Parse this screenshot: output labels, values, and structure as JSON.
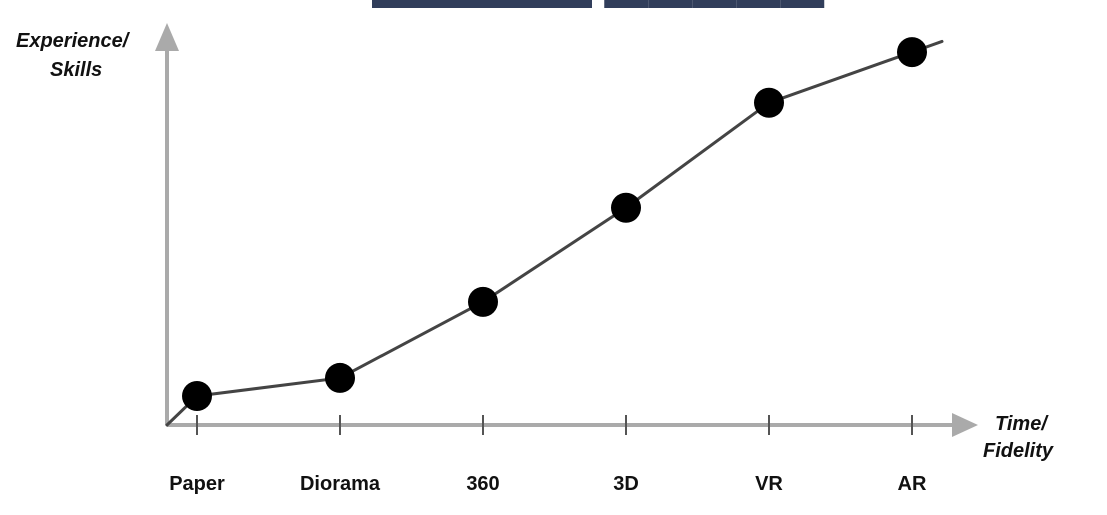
{
  "colors": {
    "axis": "#aaaaaa",
    "line": "#444444",
    "marker": "#000000",
    "text": "#111111",
    "title": "#1b2a4a"
  },
  "chart_data": {
    "type": "line",
    "title": "",
    "xlabel": "Time/ Fidelity",
    "xlabel_lines": [
      "Time/",
      "Fidelity"
    ],
    "ylabel": "Experience/ Skills",
    "ylabel_lines": [
      "Experience/",
      "Skills"
    ],
    "categories": [
      "Paper",
      "Diorama",
      "360",
      "3D",
      "VR",
      "AR"
    ],
    "series": [
      {
        "values": [
          8,
          13,
          34,
          60,
          89,
          103
        ]
      }
    ],
    "ylim": [
      0,
      108
    ],
    "grid": false,
    "legend": "none",
    "line_extends_to_origin": true,
    "line_extends_past_last_point": true
  }
}
